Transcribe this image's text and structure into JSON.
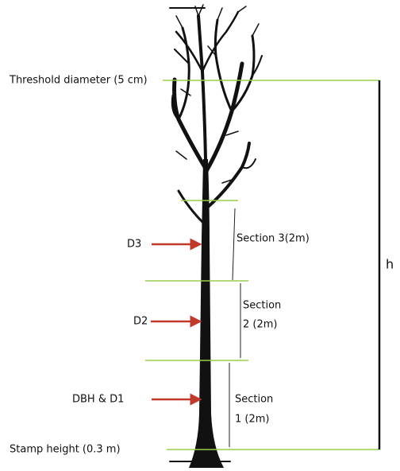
{
  "labels": {
    "threshold": "Threshold diameter (5 cm)",
    "d3": "D3",
    "d2": "D2",
    "d1": "DBH  & D1",
    "stamp": "Stamp height (0.3 m)",
    "h": "h"
  },
  "sections": [
    {
      "lines": [
        "Section  3(2m)"
      ]
    },
    {
      "lines": [
        "Section",
        "2 (2m)"
      ]
    },
    {
      "lines": [
        "Section",
        "1 (2m)"
      ]
    }
  ]
}
